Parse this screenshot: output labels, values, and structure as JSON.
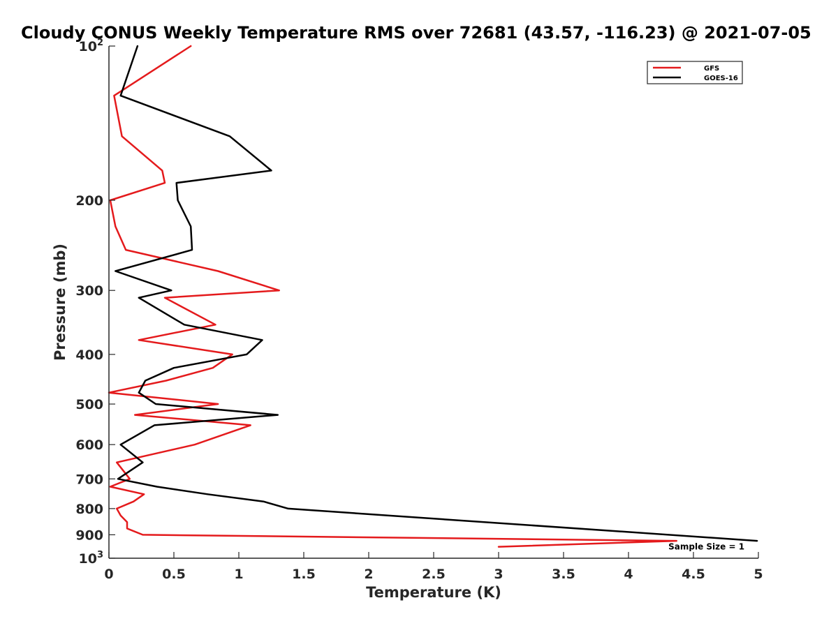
{
  "chart_data": {
    "type": "line",
    "title": "Cloudy CONUS Weekly Temperature RMS over 72681 (43.57, -116.23) @ 2021-07-05",
    "xlabel": "Temperature (K)",
    "ylabel": "Pressure (mb)",
    "xlim": [
      0,
      5
    ],
    "ylim": [
      100,
      1000
    ],
    "y_scale": "log",
    "y_reversed": true,
    "grid": false,
    "legend_position": "top-right",
    "x_ticks": [
      {
        "value": 0,
        "label": "0"
      },
      {
        "value": 0.5,
        "label": "0.5"
      },
      {
        "value": 1,
        "label": "1"
      },
      {
        "value": 1.5,
        "label": "1.5"
      },
      {
        "value": 2,
        "label": "2"
      },
      {
        "value": 2.5,
        "label": "2.5"
      },
      {
        "value": 3,
        "label": "3"
      },
      {
        "value": 3.5,
        "label": "3.5"
      },
      {
        "value": 4,
        "label": "4"
      },
      {
        "value": 4.5,
        "label": "4.5"
      },
      {
        "value": 5,
        "label": "5"
      }
    ],
    "y_ticks": [
      {
        "value": 100,
        "label": "10",
        "sup": "2"
      },
      {
        "value": 200,
        "label": "200"
      },
      {
        "value": 300,
        "label": "300"
      },
      {
        "value": 400,
        "label": "400"
      },
      {
        "value": 500,
        "label": "500"
      },
      {
        "value": 600,
        "label": "600"
      },
      {
        "value": 700,
        "label": "700"
      },
      {
        "value": 800,
        "label": "800"
      },
      {
        "value": 900,
        "label": "900"
      },
      {
        "value": 1000,
        "label": "10",
        "sup": "3"
      }
    ],
    "series": [
      {
        "name": "GFS",
        "color": "#e41a1c",
        "points": [
          [
            0.63,
            100
          ],
          [
            0.04,
            125
          ],
          [
            0.1,
            150
          ],
          [
            0.41,
            175
          ],
          [
            0.43,
            185
          ],
          [
            0.01,
            200
          ],
          [
            0.05,
            225
          ],
          [
            0.13,
            250
          ],
          [
            0.84,
            275
          ],
          [
            1.31,
            300
          ],
          [
            0.43,
            310
          ],
          [
            0.82,
            350
          ],
          [
            0.23,
            375
          ],
          [
            0.95,
            400
          ],
          [
            0.8,
            425
          ],
          [
            0.44,
            450
          ],
          [
            0.0,
            475
          ],
          [
            0.84,
            500
          ],
          [
            0.2,
            525
          ],
          [
            1.09,
            550
          ],
          [
            0.66,
            600
          ],
          [
            0.06,
            650
          ],
          [
            0.16,
            700
          ],
          [
            0.01,
            725
          ],
          [
            0.27,
            750
          ],
          [
            0.19,
            775
          ],
          [
            0.06,
            800
          ],
          [
            0.09,
            825
          ],
          [
            0.14,
            850
          ],
          [
            0.14,
            875
          ],
          [
            0.26,
            900
          ],
          [
            4.37,
            925
          ],
          [
            3.0,
            950
          ]
        ]
      },
      {
        "name": "GOES-16",
        "color": "#000000",
        "points": [
          [
            0.22,
            100
          ],
          [
            0.09,
            125
          ],
          [
            0.93,
            150
          ],
          [
            1.25,
            175
          ],
          [
            0.52,
            185
          ],
          [
            0.53,
            200
          ],
          [
            0.63,
            225
          ],
          [
            0.64,
            250
          ],
          [
            0.05,
            275
          ],
          [
            0.48,
            300
          ],
          [
            0.23,
            310
          ],
          [
            0.58,
            350
          ],
          [
            1.18,
            375
          ],
          [
            1.06,
            400
          ],
          [
            0.5,
            425
          ],
          [
            0.28,
            450
          ],
          [
            0.23,
            475
          ],
          [
            0.36,
            500
          ],
          [
            1.3,
            525
          ],
          [
            0.35,
            550
          ],
          [
            0.09,
            600
          ],
          [
            0.26,
            650
          ],
          [
            0.07,
            700
          ],
          [
            0.37,
            725
          ],
          [
            0.76,
            750
          ],
          [
            1.19,
            775
          ],
          [
            1.38,
            800
          ],
          [
            4.99,
            925
          ]
        ]
      }
    ],
    "annotations": [
      {
        "text": "Sample Size = 1",
        "x": 4.6,
        "y": 950
      }
    ]
  }
}
